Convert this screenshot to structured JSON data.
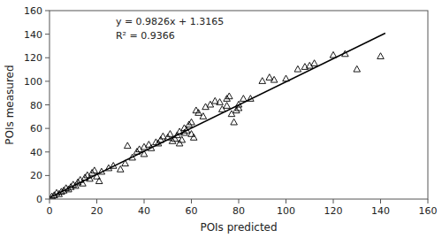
{
  "chart_data": {
    "type": "scatter",
    "title": "",
    "xlabel": "POIs predicted",
    "ylabel": "POIs measured",
    "xlim": [
      0,
      160
    ],
    "ylim": [
      0,
      160
    ],
    "xticks": [
      0,
      20,
      40,
      60,
      80,
      100,
      120,
      140,
      160
    ],
    "yticks": [
      0,
      20,
      40,
      60,
      80,
      100,
      120,
      140,
      160
    ],
    "grid": false,
    "annotations": [
      "y = 0.9826x + 1.3165",
      "R² = 0.9366"
    ],
    "series": [
      {
        "type": "scatter",
        "marker": "triangle",
        "color": "#000000",
        "x": [
          1,
          2,
          3,
          4,
          5,
          6,
          7,
          8,
          9,
          10,
          11,
          12,
          13,
          14,
          15,
          16,
          17,
          18,
          19,
          20,
          21,
          22,
          25,
          27,
          30,
          32,
          33,
          35,
          37,
          38,
          40,
          40,
          42,
          43,
          45,
          46,
          47,
          48,
          50,
          51,
          52,
          53,
          54,
          55,
          55,
          56,
          57,
          57,
          58,
          59,
          60,
          60,
          61,
          62,
          63,
          65,
          66,
          68,
          70,
          72,
          73,
          75,
          75,
          76,
          77,
          78,
          79,
          80,
          80,
          82,
          85,
          90,
          93,
          95,
          100,
          105,
          108,
          110,
          112,
          120,
          125,
          130,
          140
        ],
        "values": [
          2,
          3,
          5,
          4,
          6,
          7,
          9,
          8,
          10,
          12,
          11,
          14,
          16,
          13,
          18,
          20,
          17,
          22,
          24,
          19,
          15,
          23,
          26,
          28,
          25,
          30,
          45,
          35,
          40,
          42,
          38,
          44,
          46,
          43,
          48,
          47,
          50,
          53,
          52,
          55,
          49,
          51,
          54,
          47,
          57,
          50,
          56,
          60,
          58,
          63,
          65,
          55,
          52,
          75,
          73,
          70,
          78,
          80,
          83,
          82,
          76,
          85,
          79,
          87,
          72,
          65,
          75,
          80,
          77,
          85,
          85,
          100,
          103,
          101,
          102,
          110,
          112,
          113,
          115,
          122,
          123,
          110,
          121
        ]
      },
      {
        "type": "line",
        "line_style": "solid",
        "color": "#000000",
        "x": [
          0,
          142
        ],
        "values": [
          1.3165,
          140.8457
        ]
      }
    ]
  }
}
